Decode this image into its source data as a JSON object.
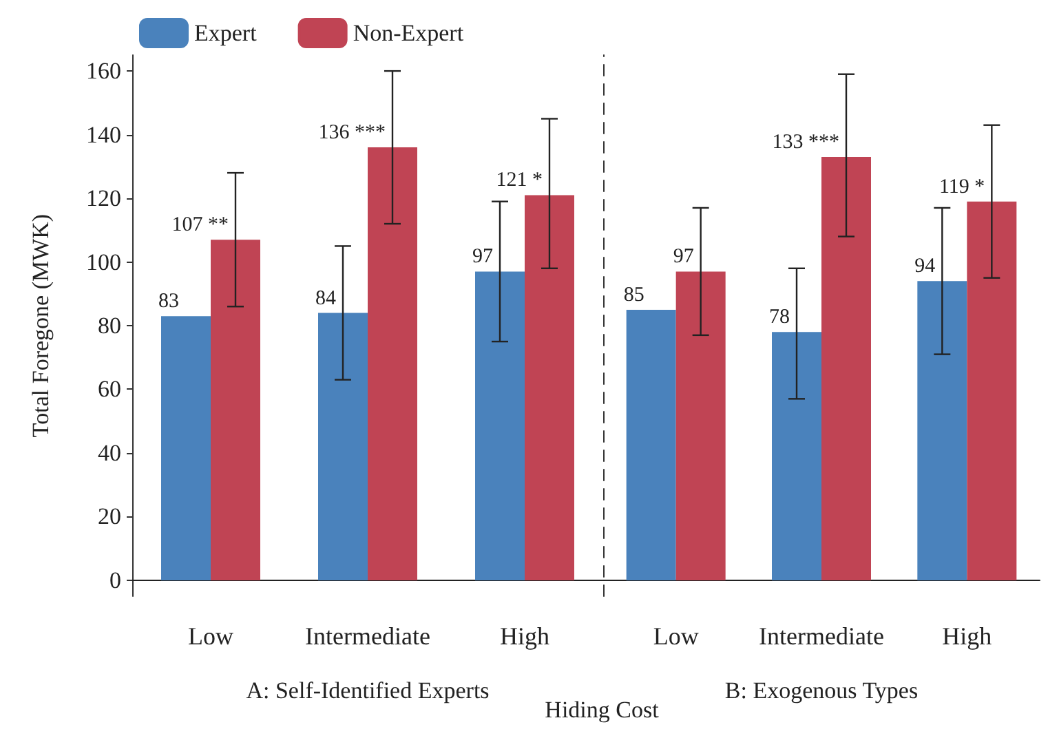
{
  "chart_data": [
    {
      "type": "bar",
      "xlabel": "A: Self-Identified Experts",
      "ylabel": "Total Foregone (MWK)",
      "categories": [
        "Low",
        "Intermediate",
        "High"
      ],
      "ylim": [
        -5,
        165
      ],
      "yticks": [
        0,
        20,
        40,
        60,
        80,
        100,
        120,
        140,
        160
      ],
      "legend": "top left",
      "series": [
        {
          "name": "Expert",
          "color": "#4a82bc",
          "values": [
            83,
            84,
            97
          ],
          "errors": [
            null,
            [
              63,
              105
            ],
            [
              75,
              119
            ]
          ],
          "value_labels": [
            "83",
            "84",
            "97"
          ]
        },
        {
          "name": "Non-Expert",
          "color": "#c04454",
          "values": [
            107,
            136,
            121
          ],
          "errors": [
            [
              86,
              128
            ],
            [
              112,
              160
            ],
            [
              98,
              145
            ]
          ],
          "value_labels": [
            "107 **",
            "136 ***",
            "121 *"
          ]
        }
      ]
    },
    {
      "type": "bar",
      "xlabel": "B: Exogenous Types",
      "categories": [
        "Low",
        "Intermediate",
        "High"
      ],
      "ylim": [
        -5,
        165
      ],
      "yticks": [
        0,
        20,
        40,
        60,
        80,
        100,
        120,
        140,
        160
      ],
      "tick_labels": "x",
      "annotations": [
        "Hiding Cost"
      ],
      "series": [
        {
          "color": "#4a82bc",
          "values": [
            85,
            78,
            94
          ],
          "errors": [
            null,
            [
              57,
              98
            ],
            [
              71,
              117
            ]
          ],
          "value_labels": [
            "85",
            "78",
            "94"
          ]
        },
        {
          "color": "#c04454",
          "values": [
            97,
            133,
            119
          ],
          "errors": [
            [
              77,
              117
            ],
            [
              108,
              159
            ],
            [
              95,
              143
            ]
          ],
          "value_labels": [
            "97",
            "133 ***",
            "119 *"
          ]
        }
      ]
    }
  ]
}
